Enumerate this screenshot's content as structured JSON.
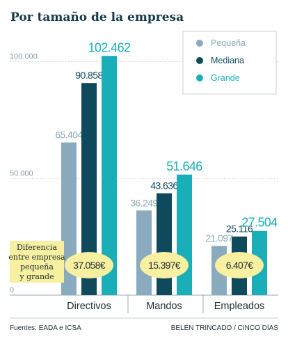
{
  "title": "Por tamaño de la empresa",
  "chart_data": {
    "type": "bar",
    "categories": [
      "Directivos",
      "Mandos",
      "Empleados"
    ],
    "series": [
      {
        "name": "Pequeña",
        "color": "#8aabbd",
        "values": [
          65404,
          36249,
          21097
        ],
        "labels": [
          "65.404",
          "36.249",
          "21.097"
        ]
      },
      {
        "name": "Mediana",
        "color": "#0e4a5c",
        "values": [
          90858,
          43636,
          25116
        ],
        "labels": [
          "90.858",
          "43.636",
          "25.116"
        ]
      },
      {
        "name": "Grande",
        "color": "#1aaeb9",
        "values": [
          102462,
          51646,
          27504
        ],
        "labels": [
          "102.462",
          "51.646",
          "27.504"
        ]
      }
    ],
    "yticks": [
      0,
      50000,
      100000
    ],
    "ytick_labels": [
      "0",
      "50.000",
      "100.000"
    ],
    "ylim": [
      0,
      110000
    ],
    "legend_position": "top-right",
    "differences": [
      "37.058€",
      "15.397€",
      "6.407€"
    ],
    "difference_note": [
      "Diferencia",
      "entre empresa",
      "pequeña",
      "y grande"
    ],
    "difference_color": "#f6f0a0"
  },
  "footer": {
    "source": "Fuentes: EADA e ICSA",
    "credit": "BELÉN TRINCADO / CINCO DÍAS"
  }
}
